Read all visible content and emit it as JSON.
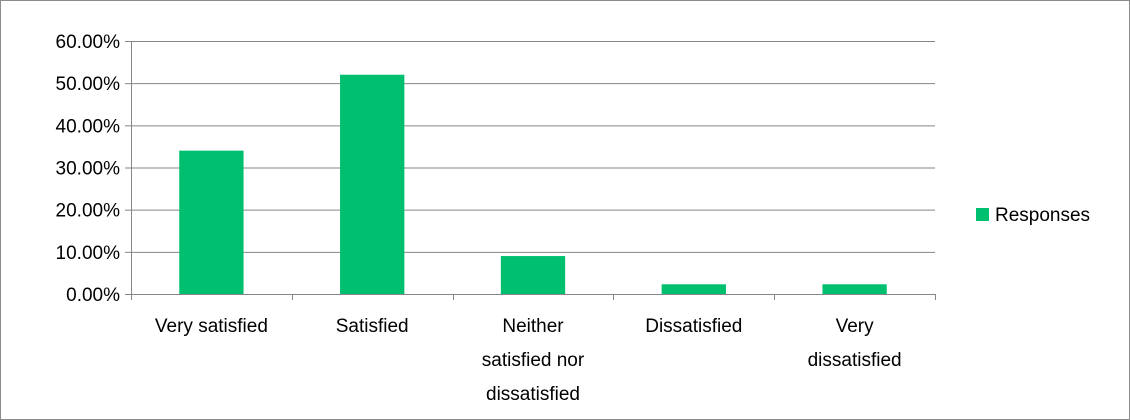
{
  "chart_data": {
    "type": "bar",
    "categories": [
      "Very satisfied",
      "Satisfied",
      "Neither satisfied nor dissatisfied",
      "Dissatisfied",
      "Very dissatisfied"
    ],
    "category_label_lines": [
      [
        "Very satisfied"
      ],
      [
        "Satisfied"
      ],
      [
        "Neither",
        "satisfied nor",
        "dissatisfied"
      ],
      [
        "Dissatisfied"
      ],
      [
        "Very",
        "dissatisfied"
      ]
    ],
    "series": [
      {
        "name": "Responses",
        "values": [
          0.34,
          0.52,
          0.09,
          0.023,
          0.023
        ],
        "color": "#00BF6F"
      }
    ],
    "ylim": [
      0,
      0.6
    ],
    "yticks": [
      0,
      0.1,
      0.2,
      0.3,
      0.4,
      0.5,
      0.6
    ],
    "ytick_labels": [
      "0.00%",
      "10.00%",
      "20.00%",
      "30.00%",
      "40.00%",
      "50.00%",
      "60.00%"
    ],
    "grid": true,
    "gridline_color": "#868686",
    "legend_position": "right"
  }
}
